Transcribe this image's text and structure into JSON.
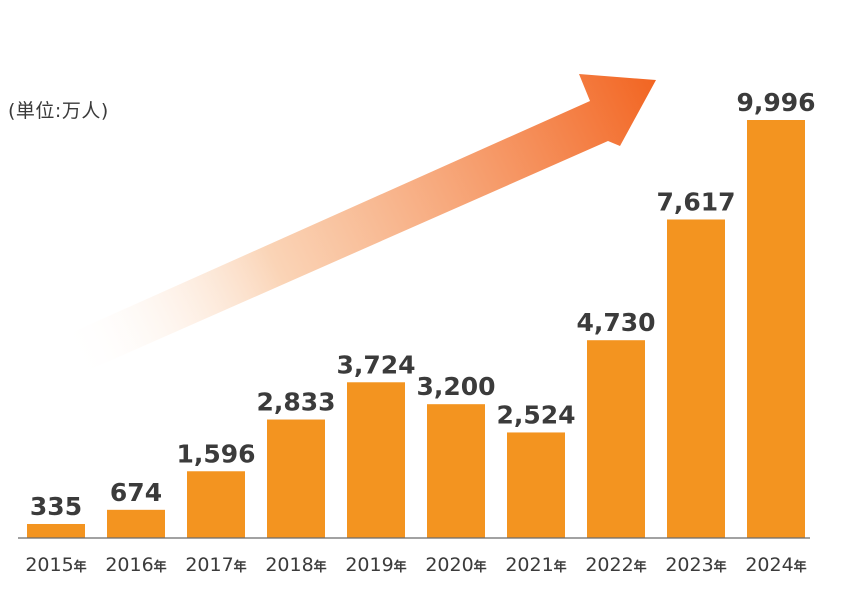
{
  "unit_label": "(単位:万人)",
  "colors": {
    "bar": "#F39420",
    "arrow_start": "#FFFFFF",
    "arrow_end": "#F26522",
    "text": "#3b3b3b",
    "axis": "#6b6b6b"
  },
  "chart_data": {
    "type": "bar",
    "title": "",
    "xlabel": "",
    "ylabel": "(単位:万人)",
    "categories": [
      "2015",
      "2016",
      "2017",
      "2018",
      "2019",
      "2020",
      "2021",
      "2022",
      "2023",
      "2024"
    ],
    "category_suffix": "年",
    "values": [
      335,
      674,
      1596,
      2833,
      3724,
      3200,
      2524,
      4730,
      7617,
      9996
    ],
    "value_labels": [
      "335",
      "674",
      "1,596",
      "2,833",
      "3,724",
      "3,200",
      "2,524",
      "4,730",
      "7,617",
      "9,996"
    ],
    "ylim": [
      0,
      9996
    ],
    "grid": false,
    "legend": "none",
    "annotation": "trend-arrow"
  }
}
